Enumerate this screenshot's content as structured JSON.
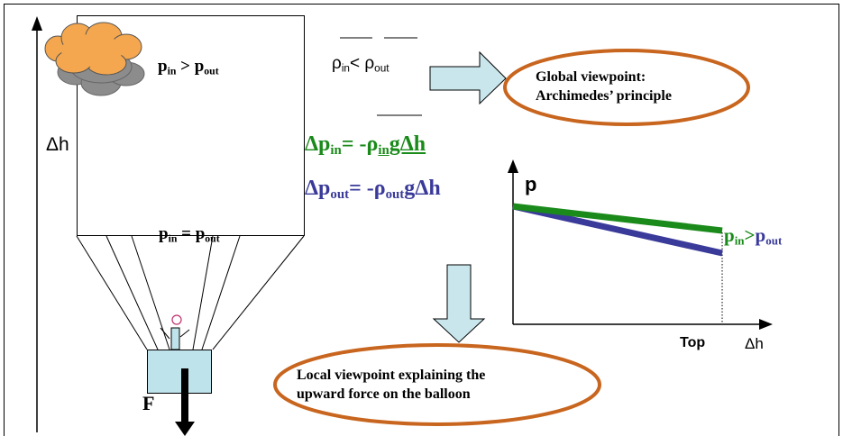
{
  "colors": {
    "green": "#1a8a1a",
    "blue": "#3a3a9a",
    "cloud": "#f4a74e",
    "cloud_shadow": "#8c8c8c",
    "arrow_fill": "#c8e6ec",
    "ellipse": "#c8651e",
    "basket": "#bfe3ea"
  },
  "balloon": {
    "top_relation": {
      "p": "p",
      "sub_in": "in",
      "op": " > ",
      "sub_out": "out"
    },
    "bottom_relation": {
      "p": "p",
      "sub_in": "in",
      "op": " = ",
      "sub_out": "out"
    },
    "height_label": "Δh",
    "force_label": "F"
  },
  "density": {
    "rho": "ρ",
    "sub_in": "in",
    "op": "< ",
    "sub_out": "out"
  },
  "equations": {
    "inside": {
      "lhs": "Δp",
      "sub": "in",
      "eq": "= -",
      "rho": "ρ",
      "rho_sub": "in",
      "rest": "gΔh"
    },
    "outside": {
      "lhs": "Δp",
      "sub": "out",
      "eq": "= -",
      "rho": "ρ",
      "rho_sub": "out",
      "rest": "gΔh"
    }
  },
  "global_view": {
    "line1": "Global viewpoint:",
    "line2": "Archimedes’ principle"
  },
  "local_view": {
    "line1": "Local viewpoint explaining the",
    "line2": "upward force on the balloon"
  },
  "graph": {
    "y_label": "p",
    "x_label": "Δh",
    "top_tick": "Top",
    "relation": {
      "p": "p",
      "sub_in": "in",
      "op": ">",
      "sub_out": "out"
    }
  }
}
